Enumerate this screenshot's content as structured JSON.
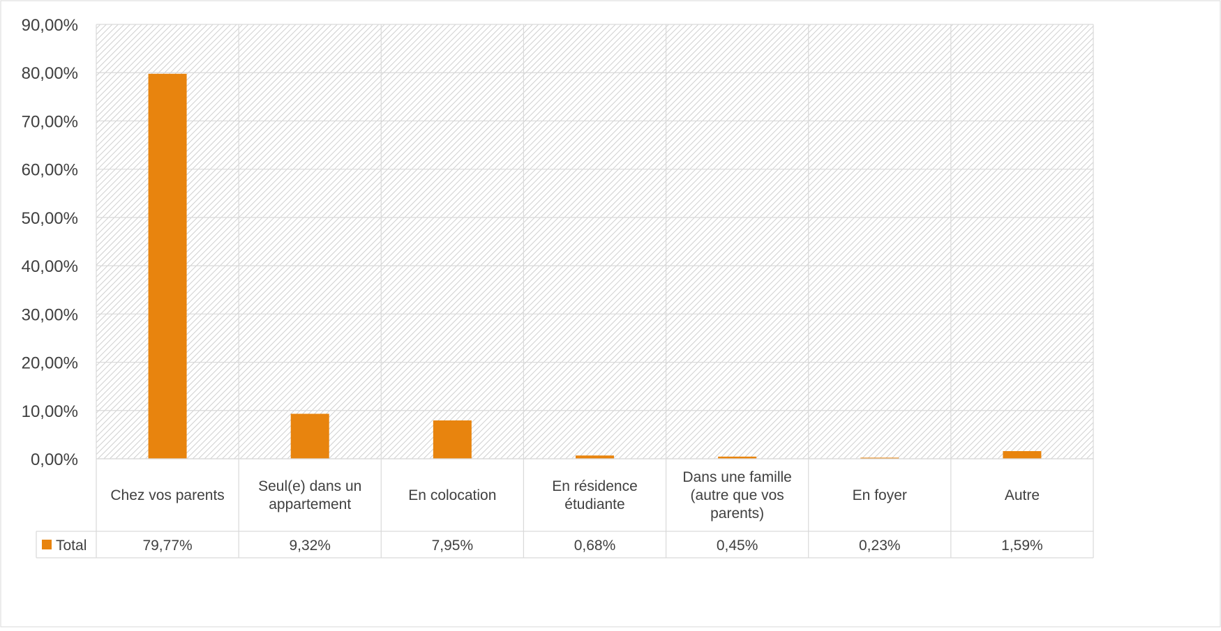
{
  "chart_data": {
    "type": "bar",
    "categories": [
      "Chez vos parents",
      "Seul(e) dans un appartement",
      "En colocation",
      "En résidence étudiante",
      "Dans une famille (autre que vos parents)",
      "En foyer",
      "Autre"
    ],
    "category_lines": [
      [
        "Chez vos parents"
      ],
      [
        "Seul(e) dans un",
        "appartement"
      ],
      [
        "En colocation"
      ],
      [
        "En résidence",
        "étudiante"
      ],
      [
        "Dans une famille",
        "(autre que vos",
        "parents)"
      ],
      [
        "En foyer"
      ],
      [
        "Autre"
      ]
    ],
    "series": [
      {
        "name": "Total",
        "values": [
          79.77,
          9.32,
          7.95,
          0.68,
          0.45,
          0.23,
          1.59
        ],
        "labels": [
          "79,77%",
          "9,32%",
          "7,95%",
          "0,68%",
          "0,45%",
          "0,23%",
          "1,59%"
        ],
        "color": "#E8840E"
      }
    ],
    "ylim": [
      0,
      90
    ],
    "yticks": [
      0,
      10,
      20,
      30,
      40,
      50,
      60,
      70,
      80,
      90
    ],
    "ytick_labels": [
      "0,00%",
      "10,00%",
      "20,00%",
      "30,00%",
      "40,00%",
      "50,00%",
      "60,00%",
      "70,00%",
      "80,00%",
      "90,00%"
    ],
    "grid": true,
    "plot_background": "hatched",
    "data_table": true,
    "legend_placement": "data-table-left"
  }
}
